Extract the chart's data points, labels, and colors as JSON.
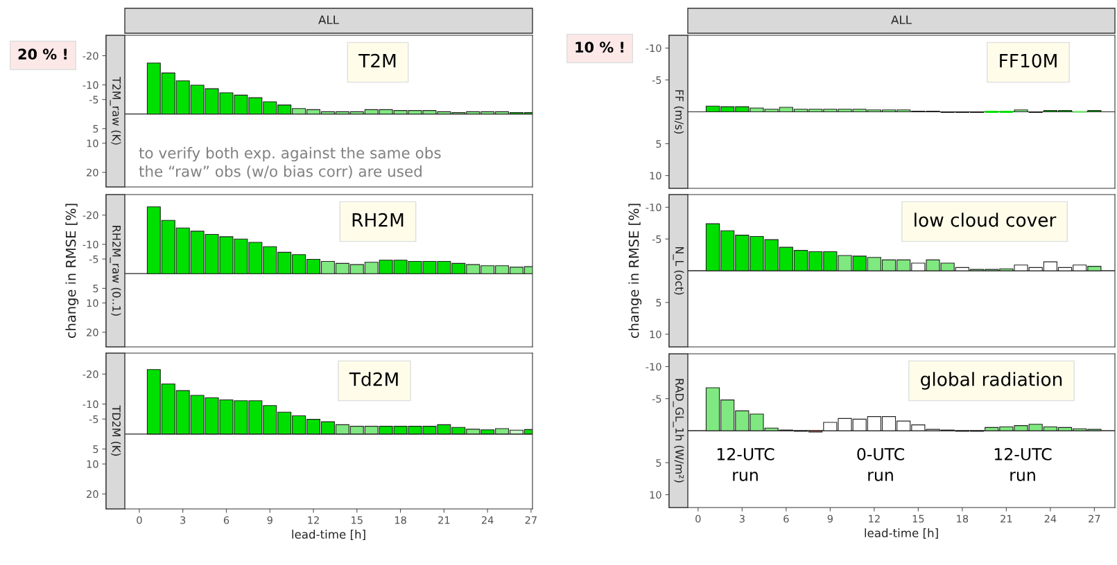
{
  "chart_data": [
    {
      "type": "bar",
      "title": "ALL",
      "x": [
        1,
        2,
        3,
        4,
        5,
        6,
        7,
        8,
        9,
        10,
        11,
        12,
        13,
        14,
        15,
        16,
        17,
        18,
        19,
        20,
        21,
        22,
        23,
        24,
        25,
        26,
        27
      ],
      "values": [
        -17.5,
        -14.1,
        -11.4,
        -9.9,
        -8.7,
        -7.3,
        -6.5,
        -5.6,
        -4.2,
        -3.1,
        -1.9,
        -1.5,
        -0.8,
        -0.8,
        -0.8,
        -1.5,
        -1.5,
        -1.2,
        -1.2,
        -1.2,
        -0.8,
        -0.5,
        -0.8,
        -0.8,
        -0.8,
        -0.5,
        -0.5
      ],
      "colors": [
        "#00e000",
        "#00e000",
        "#00e000",
        "#00e000",
        "#00e000",
        "#00e000",
        "#00e000",
        "#00e000",
        "#00e000",
        "#00e000",
        "#80e880",
        "#80e880",
        "#80e880",
        "#80e880",
        "#80e880",
        "#80e880",
        "#80e880",
        "#80e880",
        "#80e880",
        "#80e880",
        "#80e880",
        "#80e880",
        "#80e880",
        "#80e880",
        "#80e880",
        "#00e000",
        "#00e000"
      ],
      "xlim": [
        -1,
        27.1
      ],
      "xticks": [
        0,
        3,
        6,
        9,
        12,
        15,
        18,
        21,
        24,
        27
      ],
      "ylim": [
        25,
        -27
      ],
      "yticks": [
        -20,
        -10,
        -5,
        5,
        10,
        20
      ],
      "tick_labels": "y",
      "ref_lines": [
        {
          "axis": "y",
          "value": 0,
          "color": "#222222"
        }
      ],
      "annotations": [
        "T2M_raw (K)",
        "T2M",
        "to verify both exp. against the same obs\nthe “raw” obs (w/o bias corr) are used",
        "20 % !"
      ]
    },
    {
      "type": "bar",
      "ylabel": "change in RMSE [%]",
      "x": [
        1,
        2,
        3,
        4,
        5,
        6,
        7,
        8,
        9,
        10,
        11,
        12,
        13,
        14,
        15,
        16,
        17,
        18,
        19,
        20,
        21,
        22,
        23,
        24,
        25,
        26,
        27
      ],
      "values": [
        -22.8,
        -18.2,
        -15.6,
        -14.5,
        -13.4,
        -12.6,
        -11.8,
        -10.7,
        -9.2,
        -7.3,
        -6.5,
        -4.9,
        -4.2,
        -3.5,
        -3.1,
        -3.9,
        -4.6,
        -4.6,
        -4.2,
        -4.2,
        -4.2,
        -3.5,
        -3.1,
        -2.7,
        -2.7,
        -2.2,
        -2.4
      ],
      "colors": [
        "#00e000",
        "#00e000",
        "#00e000",
        "#00e000",
        "#00e000",
        "#00e000",
        "#00e000",
        "#00e000",
        "#00e000",
        "#00e000",
        "#00e000",
        "#00e000",
        "#80e880",
        "#80e880",
        "#80e880",
        "#80e880",
        "#00e000",
        "#00e000",
        "#00e000",
        "#00e000",
        "#00e000",
        "#00e000",
        "#80e880",
        "#80e880",
        "#80e880",
        "#80e880",
        "#80e880"
      ],
      "xlim": [
        -1,
        27.1
      ],
      "xticks": [
        0,
        3,
        6,
        9,
        12,
        15,
        18,
        21,
        24,
        27
      ],
      "ylim": [
        25,
        -27
      ],
      "yticks": [
        -20,
        -10,
        -5,
        5,
        10,
        20
      ],
      "tick_labels": "y",
      "ref_lines": [
        {
          "axis": "y",
          "value": 0,
          "color": "#222222"
        }
      ],
      "annotations": [
        "RH2M_raw (0..1)",
        "RH2M"
      ]
    },
    {
      "type": "bar",
      "xlabel": "lead-time [h]",
      "x": [
        1,
        2,
        3,
        4,
        5,
        6,
        7,
        8,
        9,
        10,
        11,
        12,
        13,
        14,
        15,
        16,
        17,
        18,
        19,
        20,
        21,
        22,
        23,
        24,
        25,
        26,
        27
      ],
      "values": [
        -21.5,
        -16.7,
        -14.5,
        -12.9,
        -12.1,
        -11.4,
        -11.1,
        -11.1,
        -9.5,
        -7.3,
        -6.1,
        -4.9,
        -4.1,
        -3.1,
        -2.6,
        -2.6,
        -2.6,
        -2.6,
        -2.6,
        -2.6,
        -3.1,
        -2.2,
        -1.6,
        -1.4,
        -1.8,
        -1.3,
        -1.5
      ],
      "colors": [
        "#00e000",
        "#00e000",
        "#00e000",
        "#00e000",
        "#00e000",
        "#00e000",
        "#00e000",
        "#00e000",
        "#00e000",
        "#00e000",
        "#00e000",
        "#00e000",
        "#00e000",
        "#80e880",
        "#80e880",
        "#80e880",
        "#00e000",
        "#00e000",
        "#00e000",
        "#00e000",
        "#00e000",
        "#00e000",
        "#80e880",
        "#00e000",
        "#80e880",
        "#c8f5c8",
        "#00e000"
      ],
      "xlim": [
        -1,
        27.1
      ],
      "xticks": [
        0,
        3,
        6,
        9,
        12,
        15,
        18,
        21,
        24,
        27
      ],
      "ylim": [
        25,
        -27
      ],
      "yticks": [
        -20,
        -10,
        -5,
        5,
        10,
        20
      ],
      "ref_lines": [
        {
          "axis": "y",
          "value": 0,
          "color": "#222222"
        }
      ],
      "annotations": [
        "TD2M (K)",
        "Td2M"
      ]
    },
    {
      "type": "bar",
      "title": "ALL",
      "x": [
        1,
        2,
        3,
        4,
        5,
        6,
        7,
        8,
        9,
        10,
        11,
        12,
        13,
        14,
        15,
        16,
        17,
        18,
        19,
        20,
        21,
        22,
        23,
        24,
        25,
        26,
        27
      ],
      "values": [
        -0.9,
        -0.8,
        -0.8,
        -0.6,
        -0.4,
        -0.7,
        -0.4,
        -0.4,
        -0.4,
        -0.4,
        -0.4,
        -0.3,
        -0.3,
        -0.3,
        -0.1,
        -0.1,
        0.1,
        0.1,
        0.1,
        0.0,
        0.0,
        -0.3,
        0.1,
        -0.2,
        -0.2,
        0.0,
        -0.2
      ],
      "colors": [
        "#00e000",
        "#00e000",
        "#00e000",
        "#80e880",
        "#80e880",
        "#80e880",
        "#80e880",
        "#80e880",
        "#80e880",
        "#80e880",
        "#80e880",
        "#80e880",
        "#80e880",
        "#80e880",
        "#00e000",
        "#00e000",
        "#e06060",
        "#e06060",
        "#e06060",
        "#00e000",
        "#00e000",
        "#80e880",
        "#e06060",
        "#00e000",
        "#00e000",
        "#80e880",
        "#00e000"
      ],
      "xlim": [
        -0.7,
        28.4
      ],
      "xticks": [
        0,
        3,
        6,
        9,
        12,
        15,
        18,
        21,
        24,
        27
      ],
      "ylim": [
        12,
        -12
      ],
      "yticks": [
        -10,
        -5,
        5,
        10
      ],
      "tick_labels": "y",
      "ref_lines": [
        {
          "axis": "y",
          "value": 0,
          "color": "#222222"
        }
      ],
      "annotations": [
        "FF (m/s)",
        "FF10M",
        "10 % !"
      ]
    },
    {
      "type": "bar",
      "ylabel": "change in RMSE [%]",
      "x": [
        1,
        2,
        3,
        4,
        5,
        6,
        7,
        8,
        9,
        10,
        11,
        12,
        13,
        14,
        15,
        16,
        17,
        18,
        19,
        20,
        21,
        22,
        23,
        24,
        25,
        26,
        27
      ],
      "values": [
        -7.4,
        -6.3,
        -5.6,
        -5.4,
        -4.9,
        -3.7,
        -3.2,
        -3.0,
        -3.0,
        -2.4,
        -2.3,
        -2.1,
        -1.7,
        -1.7,
        -1.2,
        -1.7,
        -1.2,
        -0.5,
        -0.2,
        -0.2,
        -0.3,
        -0.9,
        -0.5,
        -1.4,
        -0.5,
        -0.9,
        -0.7
      ],
      "colors": [
        "#00e000",
        "#00e000",
        "#00e000",
        "#00e000",
        "#00e000",
        "#00e000",
        "#00e000",
        "#00e000",
        "#00e000",
        "#80e880",
        "#00e000",
        "#80e880",
        "#80e880",
        "#80e880",
        "#ffffff",
        "#80e880",
        "#80e880",
        "#ffffff",
        "#80e880",
        "#80e880",
        "#80e880",
        "#ffffff",
        "#ffffff",
        "#ffffff",
        "#ffffff",
        "#ffffff",
        "#80e880"
      ],
      "xlim": [
        -0.7,
        28.4
      ],
      "xticks": [
        0,
        3,
        6,
        9,
        12,
        15,
        18,
        21,
        24,
        27
      ],
      "ylim": [
        12,
        -12
      ],
      "yticks": [
        -10,
        -5,
        5,
        10
      ],
      "tick_labels": "y",
      "ref_lines": [
        {
          "axis": "y",
          "value": 0,
          "color": "#222222"
        }
      ],
      "annotations": [
        "N_L (oct)",
        "low cloud cover"
      ]
    },
    {
      "type": "bar",
      "xlabel": "lead-time [h]",
      "x": [
        1,
        2,
        3,
        4,
        5,
        6,
        7,
        8,
        9,
        10,
        11,
        12,
        13,
        14,
        15,
        16,
        17,
        18,
        19,
        20,
        21,
        22,
        23,
        24,
        25,
        26,
        27
      ],
      "values": [
        -6.7,
        -4.8,
        -3.1,
        -2.6,
        -0.4,
        -0.1,
        0.1,
        0.2,
        -1.3,
        -1.9,
        -1.8,
        -2.2,
        -2.2,
        -1.5,
        -0.9,
        -0.2,
        -0.1,
        0.1,
        0.1,
        -0.5,
        -0.6,
        -0.8,
        -1.0,
        -0.6,
        -0.5,
        -0.3,
        -0.2
      ],
      "colors": [
        "#80e880",
        "#80e880",
        "#80e880",
        "#80e880",
        "#80e880",
        "#00e000",
        "#e06060",
        "#e06060",
        "#ffffff",
        "#ffffff",
        "#ffffff",
        "#ffffff",
        "#ffffff",
        "#ffffff",
        "#ffffff",
        "#ffffff",
        "#00e000",
        "#e06060",
        "#e06060",
        "#80e880",
        "#80e880",
        "#80e880",
        "#80e880",
        "#80e880",
        "#80e880",
        "#80e880",
        "#80e880"
      ],
      "xlim": [
        -0.7,
        28.4
      ],
      "xticks": [
        0,
        3,
        6,
        9,
        12,
        15,
        18,
        21,
        24,
        27
      ],
      "ylim": [
        12,
        -12
      ],
      "yticks": [
        -10,
        -5,
        5,
        10
      ],
      "ref_lines": [
        {
          "axis": "y",
          "value": 0,
          "color": "#222222"
        }
      ],
      "annotations": [
        "RAD_GL_1h (W/m²)",
        "global radiation",
        "12-UTC\nrun",
        "0-UTC\nrun",
        "12-UTC\nrun"
      ]
    }
  ]
}
